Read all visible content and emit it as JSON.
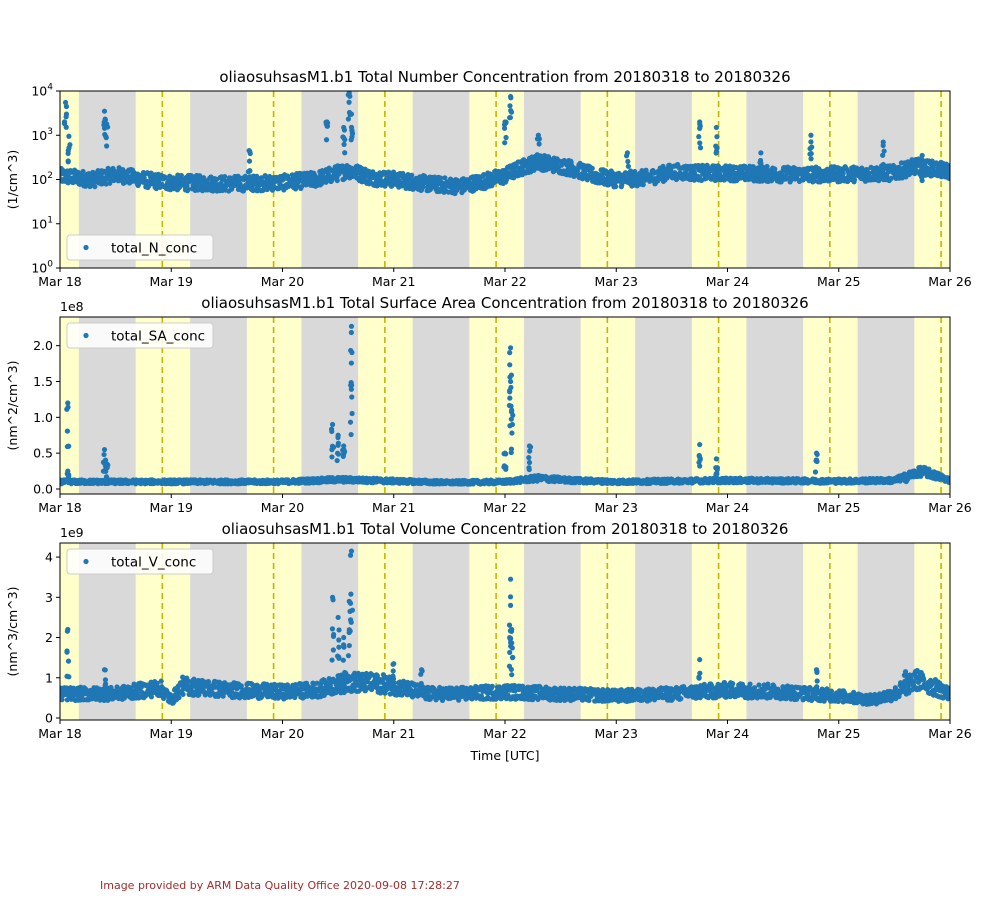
{
  "colors": {
    "night_band": "#d9d9d9",
    "day_band": "#ffffcc",
    "midday_line": "#c8b400",
    "points": "#1f77b4",
    "credit": "#a52a2a"
  },
  "x_axis": {
    "tick_labels": [
      "Mar 18",
      "Mar 19",
      "Mar 20",
      "Mar 21",
      "Mar 22",
      "Mar 23",
      "Mar 24",
      "Mar 25",
      "Mar 26"
    ],
    "xlabel": "Time [UTC]"
  },
  "credit_text": "Image provided by ARM Data Quality Office 2020-09-08 17:28:27",
  "chart_data": [
    {
      "type": "scatter",
      "title": "oliaosuhsasM1.b1 Total Number Concentration from 20180318 to 20180326",
      "ylabel": "(1/cm^3)",
      "yscale": "log",
      "ylim": [
        1,
        10000
      ],
      "ytick_values": [
        1,
        10,
        100,
        1000,
        10000
      ],
      "ytick_labels": [
        "10^0",
        "10^1",
        "10^2",
        "10^3",
        "10^4"
      ],
      "xlim_days": [
        18,
        26
      ],
      "legend": "lower left",
      "series": [
        {
          "name": "total_N_conc",
          "baseline": [
            [
              18.0,
              120
            ],
            [
              18.3,
              100
            ],
            [
              18.5,
              130
            ],
            [
              18.8,
              95
            ],
            [
              19.0,
              85
            ],
            [
              19.5,
              80
            ],
            [
              20.0,
              85
            ],
            [
              20.3,
              100
            ],
            [
              20.6,
              160
            ],
            [
              20.8,
              110
            ],
            [
              21.0,
              100
            ],
            [
              21.3,
              80
            ],
            [
              21.6,
              70
            ],
            [
              21.8,
              90
            ],
            [
              22.0,
              120
            ],
            [
              22.3,
              250
            ],
            [
              22.6,
              180
            ],
            [
              22.8,
              120
            ],
            [
              23.0,
              100
            ],
            [
              23.3,
              110
            ],
            [
              23.5,
              150
            ],
            [
              23.8,
              140
            ],
            [
              24.0,
              140
            ],
            [
              24.5,
              130
            ],
            [
              25.0,
              130
            ],
            [
              25.5,
              140
            ],
            [
              25.7,
              200
            ],
            [
              26.0,
              150
            ]
          ],
          "spikes": [
            [
              18.05,
              5500
            ],
            [
              18.08,
              950
            ],
            [
              18.4,
              3500
            ],
            [
              18.42,
              1800
            ],
            [
              19.7,
              450
            ],
            [
              20.4,
              2000
            ],
            [
              20.55,
              1500
            ],
            [
              20.6,
              9000
            ],
            [
              20.62,
              3000
            ],
            [
              22.05,
              7500
            ],
            [
              22.0,
              2000
            ],
            [
              22.3,
              1000
            ],
            [
              23.1,
              400
            ],
            [
              23.75,
              2000
            ],
            [
              23.9,
              1500
            ],
            [
              24.3,
              400
            ],
            [
              24.75,
              1000
            ],
            [
              25.4,
              700
            ],
            [
              25.75,
              350
            ]
          ]
        }
      ],
      "x_axis_ticks": true
    },
    {
      "type": "scatter",
      "title": "oliaosuhsasM1.b1 Total Surface Area Concentration from 20180318 to 20180326",
      "ylabel": "(nm^2/cm^3)",
      "yscale": "linear",
      "offset_label": "1e8",
      "ylim": [
        -0.07,
        2.4
      ],
      "ytick_values": [
        0,
        0.5,
        1.0,
        1.5,
        2.0
      ],
      "ytick_labels": [
        "0.0",
        "0.5",
        "1.0",
        "1.5",
        "2.0"
      ],
      "xlim_days": [
        18,
        26
      ],
      "legend": "upper left",
      "series": [
        {
          "name": "total_SA_conc",
          "baseline": [
            [
              18.0,
              0.1
            ],
            [
              18.5,
              0.1
            ],
            [
              19.0,
              0.1
            ],
            [
              20.0,
              0.1
            ],
            [
              20.5,
              0.13
            ],
            [
              20.8,
              0.12
            ],
            [
              21.0,
              0.11
            ],
            [
              21.5,
              0.09
            ],
            [
              22.0,
              0.1
            ],
            [
              22.3,
              0.15
            ],
            [
              22.6,
              0.12
            ],
            [
              23.0,
              0.1
            ],
            [
              24.0,
              0.12
            ],
            [
              25.0,
              0.11
            ],
            [
              25.5,
              0.12
            ],
            [
              25.75,
              0.25
            ],
            [
              26.0,
              0.12
            ]
          ],
          "spikes": [
            [
              18.07,
              1.2
            ],
            [
              18.07,
              0.25
            ],
            [
              18.4,
              0.55
            ],
            [
              18.42,
              0.35
            ],
            [
              20.45,
              0.9
            ],
            [
              20.5,
              0.75
            ],
            [
              20.55,
              0.6
            ],
            [
              20.62,
              2.27
            ],
            [
              20.62,
              1.45
            ],
            [
              22.05,
              1.97
            ],
            [
              22.05,
              1.5
            ],
            [
              22.06,
              1.1
            ],
            [
              22.0,
              0.5
            ],
            [
              22.22,
              0.6
            ],
            [
              23.75,
              0.62
            ],
            [
              23.9,
              0.42
            ],
            [
              24.8,
              0.5
            ],
            [
              25.6,
              0.2
            ]
          ]
        }
      ],
      "x_axis_ticks": true
    },
    {
      "type": "scatter",
      "title": "oliaosuhsasM1.b1 Total Volume Concentration from 20180318 to 20180326",
      "ylabel": "(nm^3/cm^3)",
      "yscale": "linear",
      "offset_label": "1e9",
      "ylim": [
        -0.05,
        4.35
      ],
      "ytick_values": [
        0,
        1,
        2,
        3,
        4
      ],
      "ytick_labels": [
        "0",
        "1",
        "2",
        "3",
        "4"
      ],
      "xlim_days": [
        18,
        26
      ],
      "legend": "upper left",
      "xlabel": "Time [UTC]",
      "series": [
        {
          "name": "total_V_conc",
          "baseline": [
            [
              18.0,
              0.6
            ],
            [
              18.5,
              0.6
            ],
            [
              18.9,
              0.75
            ],
            [
              19.0,
              0.45
            ],
            [
              19.1,
              0.8
            ],
            [
              19.5,
              0.7
            ],
            [
              20.0,
              0.65
            ],
            [
              20.3,
              0.7
            ],
            [
              20.6,
              0.9
            ],
            [
              20.9,
              0.85
            ],
            [
              21.0,
              0.8
            ],
            [
              21.3,
              0.6
            ],
            [
              21.6,
              0.6
            ],
            [
              22.0,
              0.65
            ],
            [
              22.5,
              0.6
            ],
            [
              23.0,
              0.55
            ],
            [
              23.5,
              0.6
            ],
            [
              24.0,
              0.7
            ],
            [
              24.5,
              0.65
            ],
            [
              25.0,
              0.55
            ],
            [
              25.3,
              0.45
            ],
            [
              25.5,
              0.6
            ],
            [
              25.7,
              0.95
            ],
            [
              26.0,
              0.6
            ]
          ],
          "spikes": [
            [
              18.07,
              2.2
            ],
            [
              18.4,
              1.2
            ],
            [
              20.45,
              3.0
            ],
            [
              20.5,
              2.5
            ],
            [
              20.55,
              2.0
            ],
            [
              20.62,
              4.15
            ],
            [
              20.6,
              2.9
            ],
            [
              22.05,
              3.45
            ],
            [
              22.05,
              2.8
            ],
            [
              22.06,
              2.2
            ],
            [
              21.0,
              1.35
            ],
            [
              21.25,
              1.2
            ],
            [
              23.75,
              1.45
            ],
            [
              24.8,
              1.2
            ],
            [
              25.6,
              1.15
            ]
          ]
        }
      ],
      "x_axis_ticks": true
    }
  ]
}
